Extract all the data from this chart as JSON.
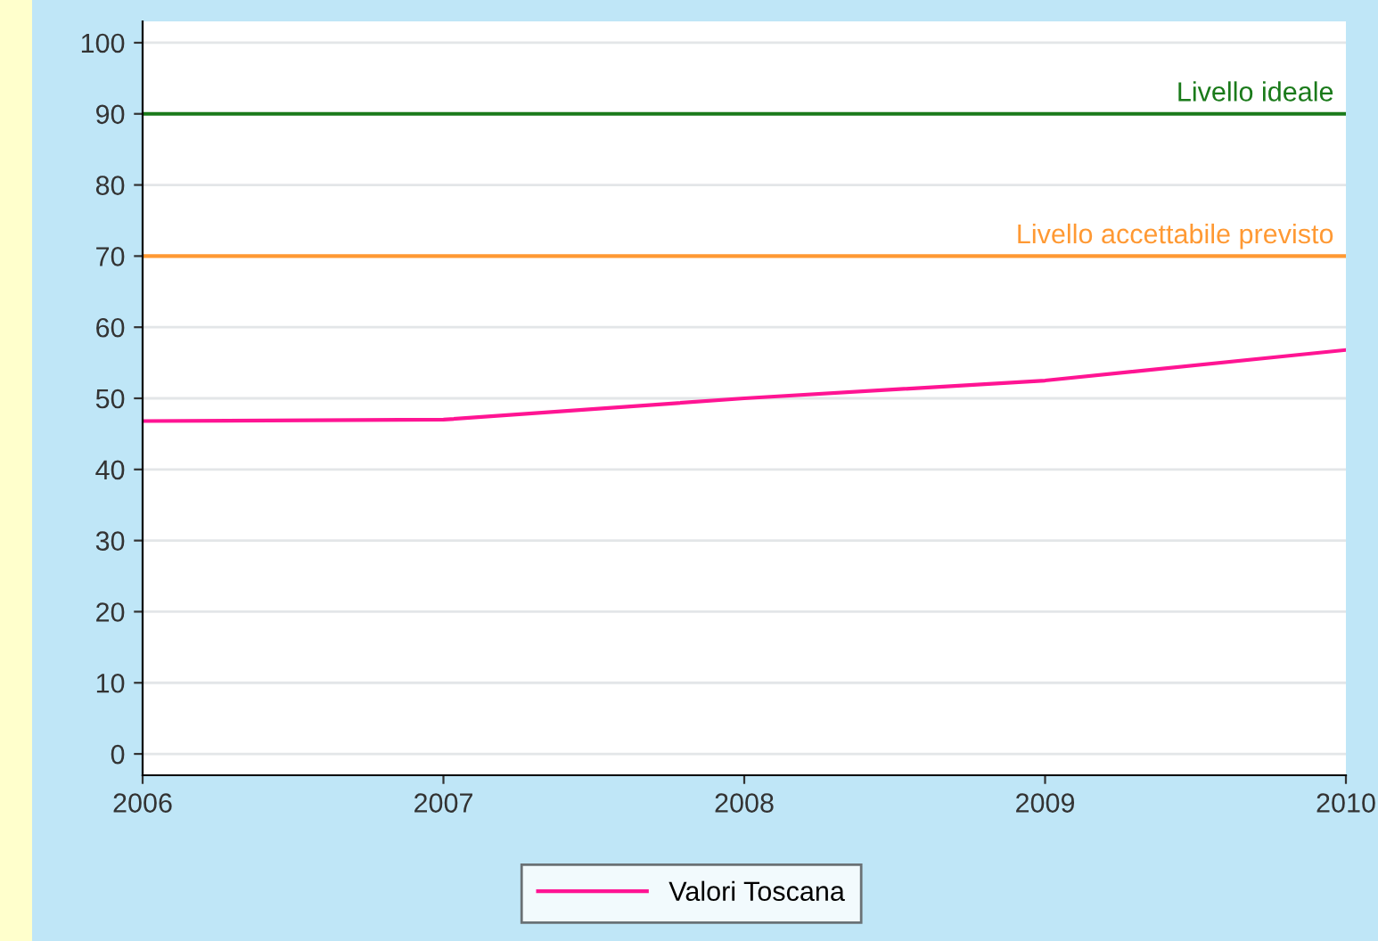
{
  "chart_data": {
    "type": "line",
    "x": [
      2006,
      2007,
      2008,
      2009,
      2010
    ],
    "series": [
      {
        "name": "Valori Toscana",
        "color": "#ff1493",
        "values": [
          46.8,
          47.0,
          50.0,
          52.5,
          56.8
        ]
      }
    ],
    "xlim": [
      2006,
      2010
    ],
    "xticks": [
      2006,
      2007,
      2008,
      2009,
      2010
    ],
    "ylim": [
      -3,
      103
    ],
    "yticks": [
      0,
      10,
      20,
      30,
      40,
      50,
      60,
      70,
      80,
      90,
      100
    ],
    "ref_lines": [
      {
        "axis": "y",
        "value": 90,
        "label": "Livello ideale",
        "color": "#1a7a1a"
      },
      {
        "axis": "y",
        "value": 70,
        "label": "Livello accettabile previsto",
        "color": "#ff9933"
      }
    ],
    "grid": "y",
    "legend": "bottom"
  }
}
